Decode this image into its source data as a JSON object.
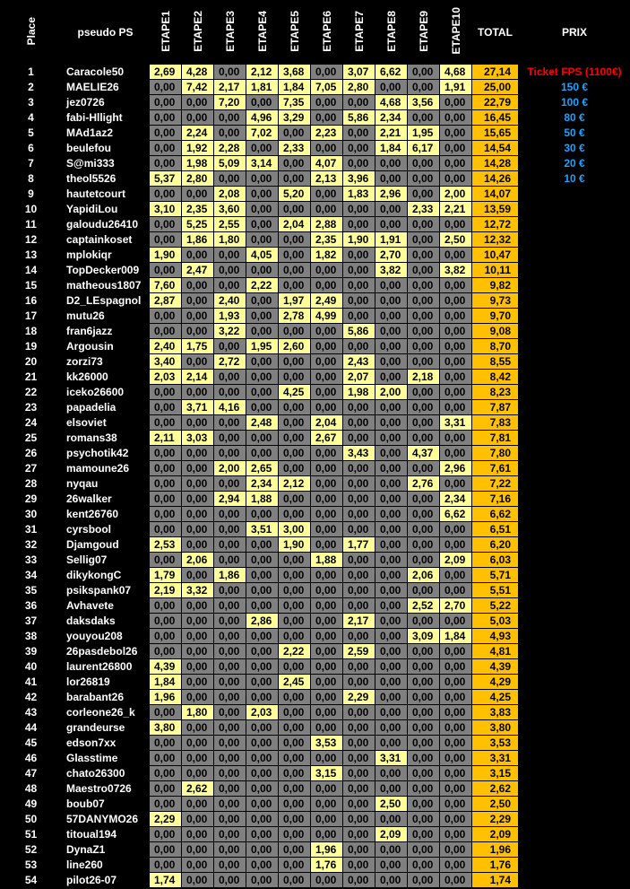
{
  "table": {
    "headers": [
      "Place",
      "pseudo PS",
      "ETAPE1",
      "ETAPE2",
      "ETAPE3",
      "ETAPE4",
      "ETAPE5",
      "ETAPE6",
      "ETAPE7",
      "ETAPE8",
      "ETAPE9",
      "ETAPE10",
      "TOTAL",
      "PRIX"
    ],
    "rows": [
      [
        "1",
        "Caracole50",
        "2,69",
        "4,28",
        "0,00",
        "2,12",
        "3,68",
        "0,00",
        "3,07",
        "6,62",
        "0,00",
        "4,68",
        "27,14",
        "Ticket FPS (1100€)"
      ],
      [
        "2",
        "MAELIE26",
        "0,00",
        "7,42",
        "2,17",
        "1,81",
        "1,84",
        "7,05",
        "2,80",
        "0,00",
        "0,00",
        "1,91",
        "25,00",
        "150 €"
      ],
      [
        "3",
        "jez0726",
        "0,00",
        "0,00",
        "7,20",
        "0,00",
        "7,35",
        "0,00",
        "0,00",
        "4,68",
        "3,56",
        "0,00",
        "22,79",
        "100 €"
      ],
      [
        "4",
        "fabi-Hllight",
        "0,00",
        "0,00",
        "0,00",
        "4,96",
        "3,29",
        "0,00",
        "5,86",
        "2,34",
        "0,00",
        "0,00",
        "16,45",
        "80 €"
      ],
      [
        "5",
        "MAd1az2",
        "0,00",
        "2,24",
        "0,00",
        "7,02",
        "0,00",
        "2,23",
        "0,00",
        "2,21",
        "1,95",
        "0,00",
        "15,65",
        "50 €"
      ],
      [
        "6",
        "beulefou",
        "0,00",
        "1,92",
        "2,28",
        "0,00",
        "2,33",
        "0,00",
        "0,00",
        "1,84",
        "6,17",
        "0,00",
        "14,54",
        "30 €"
      ],
      [
        "7",
        "S@mi333",
        "0,00",
        "1,98",
        "5,09",
        "3,14",
        "0,00",
        "4,07",
        "0,00",
        "0,00",
        "0,00",
        "0,00",
        "14,28",
        "20 €"
      ],
      [
        "8",
        "theol5526",
        "5,37",
        "2,80",
        "0,00",
        "0,00",
        "0,00",
        "2,13",
        "3,96",
        "0,00",
        "0,00",
        "0,00",
        "14,26",
        "10 €"
      ],
      [
        "9",
        "hautetcourt",
        "0,00",
        "0,00",
        "2,08",
        "0,00",
        "5,20",
        "0,00",
        "1,83",
        "2,96",
        "0,00",
        "2,00",
        "14,07"
      ],
      [
        "10",
        "YapidiLou",
        "3,10",
        "2,35",
        "3,60",
        "0,00",
        "0,00",
        "0,00",
        "0,00",
        "0,00",
        "2,33",
        "2,21",
        "13,59"
      ],
      [
        "11",
        "galoudu26410",
        "0,00",
        "5,25",
        "2,55",
        "0,00",
        "2,04",
        "2,88",
        "0,00",
        "0,00",
        "0,00",
        "0,00",
        "12,72"
      ],
      [
        "12",
        "captainkoset",
        "0,00",
        "1,86",
        "1,80",
        "0,00",
        "0,00",
        "2,35",
        "1,90",
        "1,91",
        "0,00",
        "2,50",
        "12,32"
      ],
      [
        "13",
        "mplokiqr",
        "1,90",
        "0,00",
        "0,00",
        "4,05",
        "0,00",
        "1,82",
        "0,00",
        "2,70",
        "0,00",
        "0,00",
        "10,47"
      ],
      [
        "14",
        "TopDecker009",
        "0,00",
        "2,47",
        "0,00",
        "0,00",
        "0,00",
        "0,00",
        "0,00",
        "3,82",
        "0,00",
        "3,82",
        "10,11"
      ],
      [
        "15",
        "matheous1807",
        "7,60",
        "0,00",
        "0,00",
        "2,22",
        "0,00",
        "0,00",
        "0,00",
        "0,00",
        "0,00",
        "0,00",
        "9,82"
      ],
      [
        "16",
        "D2_LEspagnol",
        "2,87",
        "0,00",
        "2,40",
        "0,00",
        "1,97",
        "2,49",
        "0,00",
        "0,00",
        "0,00",
        "0,00",
        "9,73"
      ],
      [
        "17",
        "mutu26",
        "0,00",
        "0,00",
        "1,93",
        "0,00",
        "2,78",
        "4,99",
        "0,00",
        "0,00",
        "0,00",
        "0,00",
        "9,70"
      ],
      [
        "18",
        "fran6jazz",
        "0,00",
        "0,00",
        "3,22",
        "0,00",
        "0,00",
        "0,00",
        "5,86",
        "0,00",
        "0,00",
        "0,00",
        "9,08"
      ],
      [
        "19",
        "Argousin",
        "2,40",
        "1,75",
        "0,00",
        "1,95",
        "2,60",
        "0,00",
        "0,00",
        "0,00",
        "0,00",
        "0,00",
        "8,70"
      ],
      [
        "20",
        "zorzi73",
        "3,40",
        "0,00",
        "2,72",
        "0,00",
        "0,00",
        "0,00",
        "2,43",
        "0,00",
        "0,00",
        "0,00",
        "8,55"
      ],
      [
        "21",
        "kk26000",
        "2,03",
        "2,14",
        "0,00",
        "0,00",
        "0,00",
        "0,00",
        "2,07",
        "0,00",
        "2,18",
        "0,00",
        "8,42"
      ],
      [
        "22",
        "iceko26600",
        "0,00",
        "0,00",
        "0,00",
        "0,00",
        "4,25",
        "0,00",
        "1,98",
        "2,00",
        "0,00",
        "0,00",
        "8,23"
      ],
      [
        "23",
        "papadelia",
        "0,00",
        "3,71",
        "4,16",
        "0,00",
        "0,00",
        "0,00",
        "0,00",
        "0,00",
        "0,00",
        "0,00",
        "7,87"
      ],
      [
        "24",
        "elsoviet",
        "0,00",
        "0,00",
        "0,00",
        "2,48",
        "0,00",
        "2,04",
        "0,00",
        "0,00",
        "0,00",
        "3,31",
        "7,83"
      ],
      [
        "25",
        "romans38",
        "2,11",
        "3,03",
        "0,00",
        "0,00",
        "0,00",
        "2,67",
        "0,00",
        "0,00",
        "0,00",
        "0,00",
        "7,81"
      ],
      [
        "26",
        "psychotik42",
        "0,00",
        "0,00",
        "0,00",
        "0,00",
        "0,00",
        "0,00",
        "3,43",
        "0,00",
        "4,37",
        "0,00",
        "7,80"
      ],
      [
        "27",
        "mamoune26",
        "0,00",
        "0,00",
        "2,00",
        "2,65",
        "0,00",
        "0,00",
        "0,00",
        "0,00",
        "0,00",
        "2,96",
        "7,61"
      ],
      [
        "28",
        "nyqau",
        "0,00",
        "0,00",
        "0,00",
        "2,34",
        "2,12",
        "0,00",
        "0,00",
        "0,00",
        "2,76",
        "0,00",
        "7,22"
      ],
      [
        "29",
        "26walker",
        "0,00",
        "0,00",
        "2,94",
        "1,88",
        "0,00",
        "0,00",
        "0,00",
        "0,00",
        "0,00",
        "2,34",
        "7,16"
      ],
      [
        "30",
        "kent26760",
        "0,00",
        "0,00",
        "0,00",
        "0,00",
        "0,00",
        "0,00",
        "0,00",
        "0,00",
        "0,00",
        "6,62",
        "6,62"
      ],
      [
        "31",
        "cyrsbool",
        "0,00",
        "0,00",
        "0,00",
        "3,51",
        "3,00",
        "0,00",
        "0,00",
        "0,00",
        "0,00",
        "0,00",
        "6,51"
      ],
      [
        "32",
        "Djamgoud",
        "2,53",
        "0,00",
        "0,00",
        "0,00",
        "1,90",
        "0,00",
        "1,77",
        "0,00",
        "0,00",
        "0,00",
        "6,20"
      ],
      [
        "33",
        "Sellig07",
        "0,00",
        "2,06",
        "0,00",
        "0,00",
        "0,00",
        "1,88",
        "0,00",
        "0,00",
        "0,00",
        "2,09",
        "6,03"
      ],
      [
        "34",
        "dikykongC",
        "1,79",
        "0,00",
        "1,86",
        "0,00",
        "0,00",
        "0,00",
        "0,00",
        "0,00",
        "2,06",
        "0,00",
        "5,71"
      ],
      [
        "35",
        "psikspank07",
        "2,19",
        "3,32",
        "0,00",
        "0,00",
        "0,00",
        "0,00",
        "0,00",
        "0,00",
        "0,00",
        "0,00",
        "5,51"
      ],
      [
        "36",
        "Avhavete",
        "0,00",
        "0,00",
        "0,00",
        "0,00",
        "0,00",
        "0,00",
        "0,00",
        "0,00",
        "2,52",
        "2,70",
        "5,22"
      ],
      [
        "37",
        "daksdaks",
        "0,00",
        "0,00",
        "0,00",
        "2,86",
        "0,00",
        "0,00",
        "2,17",
        "0,00",
        "0,00",
        "0,00",
        "5,03"
      ],
      [
        "38",
        "youyou208",
        "0,00",
        "0,00",
        "0,00",
        "0,00",
        "0,00",
        "0,00",
        "0,00",
        "0,00",
        "3,09",
        "1,84",
        "4,93"
      ],
      [
        "39",
        "26pasdebol26",
        "0,00",
        "0,00",
        "0,00",
        "0,00",
        "2,22",
        "0,00",
        "2,59",
        "0,00",
        "0,00",
        "0,00",
        "4,81"
      ],
      [
        "40",
        "laurent26800",
        "4,39",
        "0,00",
        "0,00",
        "0,00",
        "0,00",
        "0,00",
        "0,00",
        "0,00",
        "0,00",
        "0,00",
        "4,39"
      ],
      [
        "41",
        "lor26819",
        "1,84",
        "0,00",
        "0,00",
        "0,00",
        "2,45",
        "0,00",
        "0,00",
        "0,00",
        "0,00",
        "0,00",
        "4,29"
      ],
      [
        "42",
        "barabant26",
        "1,96",
        "0,00",
        "0,00",
        "0,00",
        "0,00",
        "0,00",
        "2,29",
        "0,00",
        "0,00",
        "0,00",
        "4,25"
      ],
      [
        "43",
        "corleone26_k",
        "0,00",
        "1,80",
        "0,00",
        "2,03",
        "0,00",
        "0,00",
        "0,00",
        "0,00",
        "0,00",
        "0,00",
        "3,83"
      ],
      [
        "44",
        "grandeurse",
        "3,80",
        "0,00",
        "0,00",
        "0,00",
        "0,00",
        "0,00",
        "0,00",
        "0,00",
        "0,00",
        "0,00",
        "3,80"
      ],
      [
        "45",
        "edson7xx",
        "0,00",
        "0,00",
        "0,00",
        "0,00",
        "0,00",
        "3,53",
        "0,00",
        "0,00",
        "0,00",
        "0,00",
        "3,53"
      ],
      [
        "46",
        "Glasstime",
        "0,00",
        "0,00",
        "0,00",
        "0,00",
        "0,00",
        "0,00",
        "0,00",
        "3,31",
        "0,00",
        "0,00",
        "3,31"
      ],
      [
        "47",
        "chato26300",
        "0,00",
        "0,00",
        "0,00",
        "0,00",
        "0,00",
        "3,15",
        "0,00",
        "0,00",
        "0,00",
        "0,00",
        "3,15"
      ],
      [
        "48",
        "Maestro0726",
        "0,00",
        "2,62",
        "0,00",
        "0,00",
        "0,00",
        "0,00",
        "0,00",
        "0,00",
        "0,00",
        "0,00",
        "2,62"
      ],
      [
        "49",
        "boub07",
        "0,00",
        "0,00",
        "0,00",
        "0,00",
        "0,00",
        "0,00",
        "0,00",
        "2,50",
        "0,00",
        "0,00",
        "2,50"
      ],
      [
        "50",
        "57DANYMO26",
        "2,29",
        "0,00",
        "0,00",
        "0,00",
        "0,00",
        "0,00",
        "0,00",
        "0,00",
        "0,00",
        "0,00",
        "2,29"
      ],
      [
        "51",
        "titoual194",
        "0,00",
        "0,00",
        "0,00",
        "0,00",
        "0,00",
        "0,00",
        "0,00",
        "2,09",
        "0,00",
        "0,00",
        "2,09"
      ],
      [
        "52",
        "DynaZ1",
        "0,00",
        "0,00",
        "0,00",
        "0,00",
        "0,00",
        "1,96",
        "0,00",
        "0,00",
        "0,00",
        "0,00",
        "1,96"
      ],
      [
        "53",
        "line260",
        "0,00",
        "0,00",
        "0,00",
        "0,00",
        "0,00",
        "1,76",
        "0,00",
        "0,00",
        "0,00",
        "0,00",
        "1,76"
      ],
      [
        "54",
        "pilot26-07",
        "1,74",
        "0,00",
        "0,00",
        "0,00",
        "0,00",
        "0,00",
        "0,00",
        "0,00",
        "0,00",
        "0,00",
        "1,74"
      ]
    ]
  }
}
